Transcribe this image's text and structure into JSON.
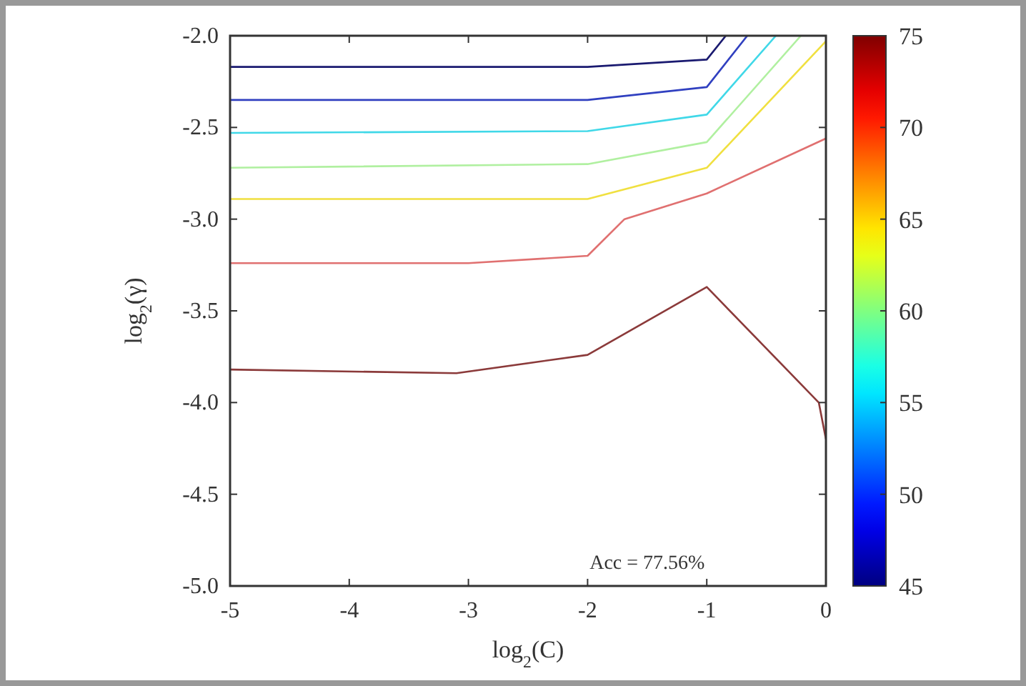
{
  "chart_data": {
    "type": "line",
    "xlabel": "log$_{2}$(C)",
    "ylabel": "log$_{2}$(γ)",
    "xlim": [
      -5,
      0
    ],
    "ylim": [
      -5,
      -2
    ],
    "xticks": [
      -5,
      -4,
      -3,
      -2,
      -1,
      0
    ],
    "yticks": [
      {
        "value": -5,
        "label": "-5.0"
      },
      {
        "value": -4.5,
        "label": "-4.5"
      },
      {
        "value": -4,
        "label": "-4.0"
      },
      {
        "value": -3.5,
        "label": "-3.5"
      },
      {
        "value": -3,
        "label": "-3.0"
      },
      {
        "value": -2.5,
        "label": "-2.5"
      },
      {
        "value": -2,
        "label": "-2.0"
      }
    ],
    "clim": [
      45,
      75
    ],
    "cticks": [
      45,
      50,
      55,
      60,
      65,
      70,
      75
    ],
    "annotations": [
      "Acc = 77.56%"
    ],
    "series": [
      {
        "color": "#1a1a70",
        "x": [
          -5,
          -2,
          -1,
          -0.84
        ],
        "values": [
          -2.17,
          -2.17,
          -2.13,
          -2.0
        ]
      },
      {
        "color": "#3040c0",
        "x": [
          -5,
          -2,
          -1,
          -0.66
        ],
        "values": [
          -2.35,
          -2.35,
          -2.28,
          -2.0
        ]
      },
      {
        "color": "#40d8e8",
        "x": [
          -5,
          -2,
          -1,
          -0.42
        ],
        "values": [
          -2.53,
          -2.52,
          -2.43,
          -2.0
        ]
      },
      {
        "color": "#b0f0a0",
        "x": [
          -5,
          -2,
          -1,
          -0.21
        ],
        "values": [
          -2.72,
          -2.7,
          -2.58,
          -2.0
        ]
      },
      {
        "color": "#f0e040",
        "x": [
          -5,
          -2,
          -1,
          0
        ],
        "values": [
          -2.89,
          -2.89,
          -2.72,
          -2.03
        ]
      },
      {
        "color": "#e07070",
        "x": [
          -5,
          -3,
          -2,
          -1.69,
          -1,
          0
        ],
        "values": [
          -3.24,
          -3.24,
          -3.2,
          -3.0,
          -2.86,
          -2.56
        ]
      },
      {
        "color": "#8b3a3a",
        "x": [
          -5,
          -3.1,
          -2,
          -1,
          -0.06,
          0
        ],
        "values": [
          -3.82,
          -3.84,
          -3.74,
          -3.37,
          -4.0,
          -4.2
        ]
      }
    ]
  }
}
